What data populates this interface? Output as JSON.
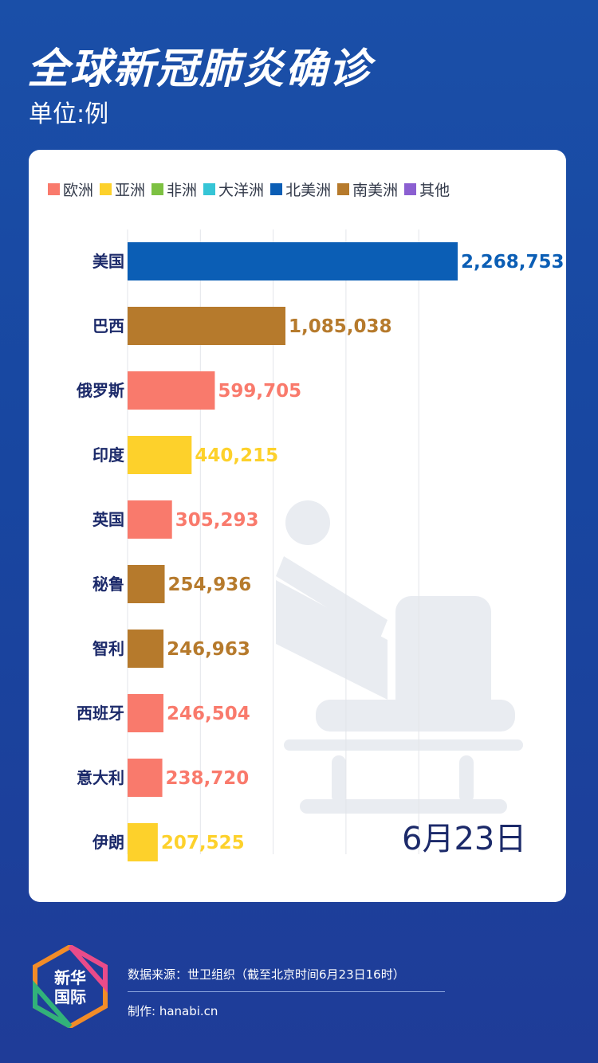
{
  "header": {
    "title": "全球新冠肺炎确诊",
    "unit": "单位:例"
  },
  "legend": [
    {
      "label": "欧洲",
      "color": "#f97a6c"
    },
    {
      "label": "亚洲",
      "color": "#fdd12b"
    },
    {
      "label": "非洲",
      "color": "#7dc142"
    },
    {
      "label": "大洋洲",
      "color": "#36c5d6"
    },
    {
      "label": "北美洲",
      "color": "#0b5eb5"
    },
    {
      "label": "南美洲",
      "color": "#b67a2c"
    },
    {
      "label": "其他",
      "color": "#8b5fd1"
    }
  ],
  "chart_data": {
    "type": "bar",
    "orientation": "horizontal",
    "title": "全球新冠肺炎确诊",
    "unit": "单位:例",
    "categories": [
      "美国",
      "巴西",
      "俄罗斯",
      "印度",
      "英国",
      "秘鲁",
      "智利",
      "西班牙",
      "意大利",
      "伊朗"
    ],
    "values": [
      2268753,
      1085038,
      599705,
      440215,
      305293,
      254936,
      246963,
      246504,
      238720,
      207525
    ],
    "value_labels": [
      "2,268,753",
      "1,085,038",
      "599,705",
      "440,215",
      "305,293",
      "254,936",
      "246,963",
      "246,504",
      "238,720",
      "207,525"
    ],
    "region": [
      "北美洲",
      "南美洲",
      "欧洲",
      "亚洲",
      "欧洲",
      "南美洲",
      "南美洲",
      "欧洲",
      "欧洲",
      "亚洲"
    ],
    "xlim": [
      0,
      2500000
    ],
    "grid": true,
    "legend_position": "top"
  },
  "date_label": "6月23日",
  "footer": {
    "logo_line1": "新华",
    "logo_line2": "国际",
    "source": "数据来源：世卫组织（截至北京时间6月23日16时）",
    "made_by": "制作:  hanabi.cn"
  }
}
